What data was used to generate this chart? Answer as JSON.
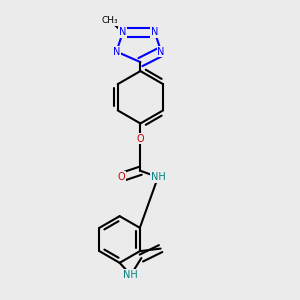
{
  "bg_color": "#ebebeb",
  "bond_color": "#000000",
  "n_color": "#0000ff",
  "o_color": "#cc0000",
  "nh_color": "#008080",
  "line_width": 1.5,
  "figsize": [
    3.0,
    3.0
  ],
  "dpi": 100,
  "xlim": [
    0.15,
    0.75
  ],
  "ylim": [
    0.04,
    0.97
  ]
}
